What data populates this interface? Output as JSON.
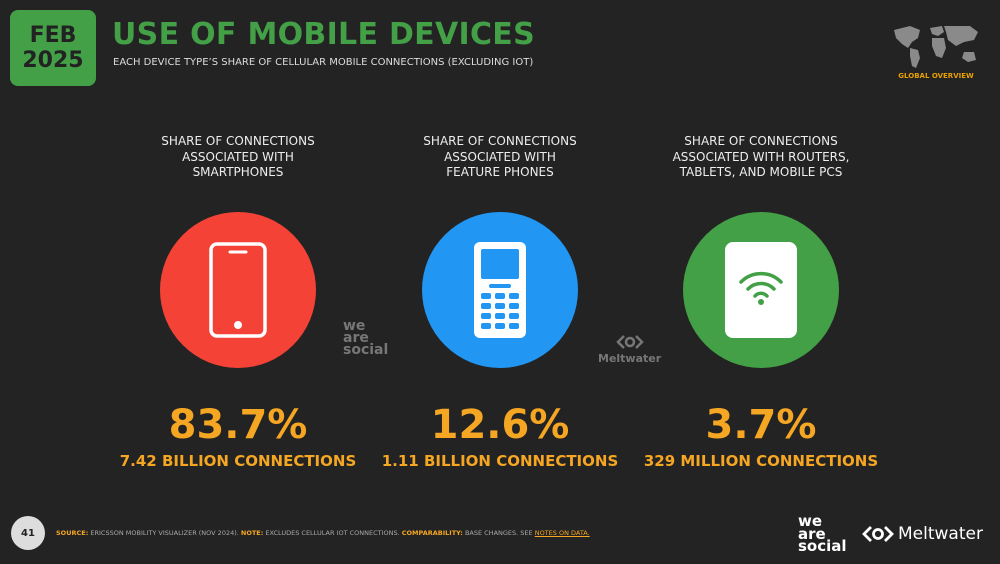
{
  "badge": {
    "month": "FEB",
    "year": "2025"
  },
  "header": {
    "title": "USE OF MOBILE DEVICES",
    "subtitle": "EACH DEVICE TYPE’S SHARE OF CELLULAR MOBILE CONNECTIONS (EXCLUDING IOT)",
    "region_label": "GLOBAL OVERVIEW"
  },
  "columns": [
    {
      "heading": [
        "SHARE OF CONNECTIONS",
        "ASSOCIATED WITH",
        "SMARTPHONES"
      ],
      "icon": "smartphone-icon",
      "color": "#f44336",
      "value": "83.7%",
      "detail": "7.42 BILLION CONNECTIONS"
    },
    {
      "heading": [
        "SHARE OF CONNECTIONS",
        "ASSOCIATED WITH",
        "FEATURE PHONES"
      ],
      "icon": "feature-phone-icon",
      "color": "#2196f3",
      "value": "12.6%",
      "detail": "1.11 BILLION CONNECTIONS"
    },
    {
      "heading": [
        "SHARE OF CONNECTIONS",
        "ASSOCIATED WITH ROUTERS,",
        "TABLETS, AND MOBILE PCS"
      ],
      "icon": "router-tablet-icon",
      "color": "#43a047",
      "value": "3.7%",
      "detail": "329 MILLION CONNECTIONS"
    }
  ],
  "watermarks": {
    "we": "we",
    "are": "are",
    "social": "social",
    "meltwater": "Meltwater"
  },
  "footer": {
    "page": "41",
    "source_key": "SOURCE:",
    "source_text": " ERICSSON MOBILITY VISUALIZER (NOV 2024). ",
    "note_key": "NOTE:",
    "note_text": " EXCLUDES CELLULAR IOT CONNECTIONS. ",
    "comp_key": "COMPARABILITY:",
    "comp_text": " BASE CHANGES. SEE ",
    "link": "NOTES ON DATA."
  },
  "logos": {
    "we": "we",
    "are": "are",
    "social": "social",
    "meltwater": "Meltwater"
  }
}
